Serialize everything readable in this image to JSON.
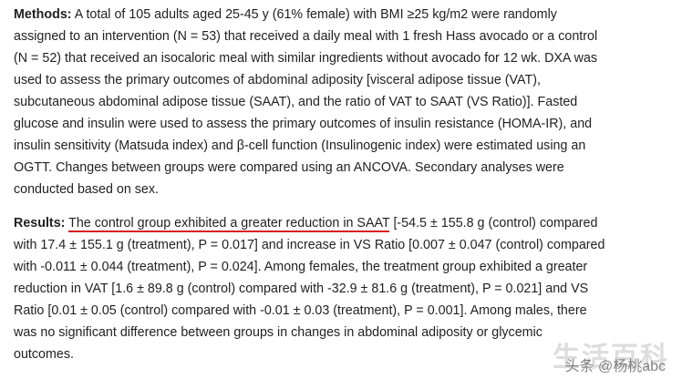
{
  "methods": {
    "label": "Methods:",
    "lines": [
      "A total of 105 adults aged 25-45 y (61% female) with BMI ≥25 kg/m2 were randomly",
      "assigned to an intervention (N = 53) that received a daily meal with 1 fresh Hass avocado or a control",
      "(N = 52) that received an isocaloric meal with similar ingredients without avocado for 12 wk. DXA was",
      "used to assess the primary outcomes of abdominal adiposity [visceral adipose tissue (VAT),",
      "subcutaneous abdominal adipose tissue (SAAT), and the ratio of VAT to SAAT (VS Ratio)]. Fasted",
      "glucose and insulin were used to assess the primary outcomes of insulin resistance (HOMA-IR), and",
      "insulin sensitivity (Matsuda index) and β-cell function (Insulinogenic index) were estimated using an",
      "OGTT. Changes between groups were compared using an ANCOVA. Secondary analyses were",
      "conducted based on sex."
    ]
  },
  "results": {
    "label": "Results:",
    "highlight": "The control group exhibited a greater reduction in SAAT",
    "lines": [
      "[-54.5 ± 155.8 g (control) compared",
      "with 17.4 ± 155.1 g (treatment), P = 0.017] and increase in VS Ratio [0.007 ± 0.047 (control) compared",
      "with -0.011 ± 0.044 (treatment), P = 0.024]. Among females, the treatment group exhibited a greater",
      "reduction in VAT [1.6 ± 89.8 g (control) compared with -32.9 ± 81.6 g (treatment), P = 0.021] and VS",
      "Ratio [0.01 ± 0.05 (control) compared with -0.01 ± 0.03 (treatment), P = 0.001]. Among males, there",
      "was no significant difference between groups in changes in abdominal adiposity or glycemic",
      "outcomes."
    ]
  },
  "watermark": {
    "brand": "生活百科",
    "handle": "头条 @杨桃abc"
  }
}
